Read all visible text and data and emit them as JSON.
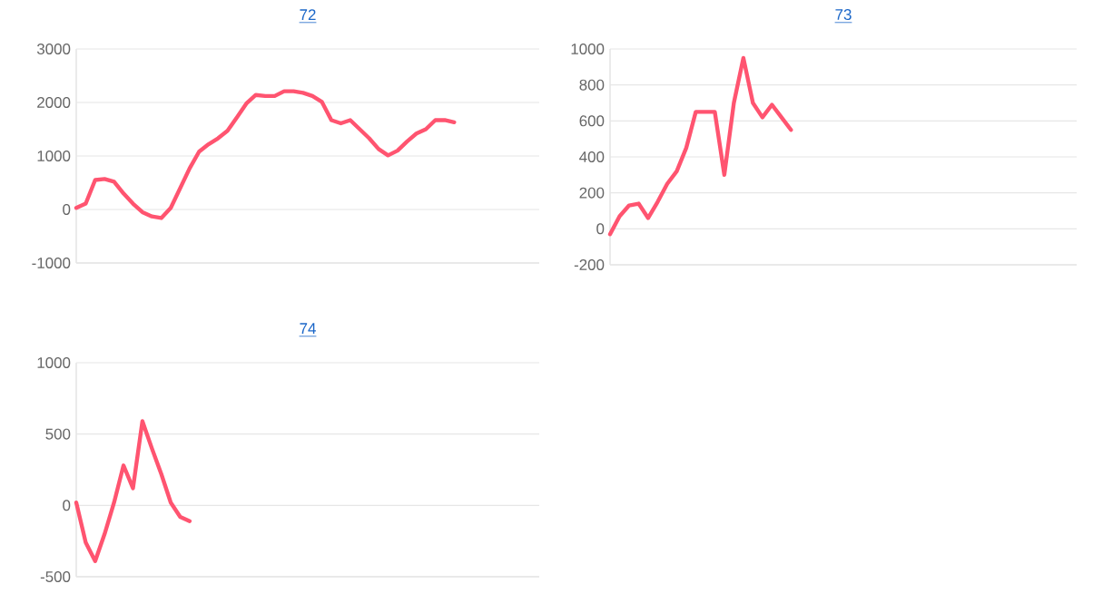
{
  "chart_data": [
    {
      "type": "line",
      "title": "72",
      "grid": "y",
      "tick_labels": "y",
      "marker": "none",
      "ylim": [
        -1000,
        3000
      ],
      "yticks": [
        -1000,
        0,
        1000,
        2000,
        3000
      ],
      "categories": [
        null,
        null,
        null,
        null,
        null,
        null,
        null,
        null,
        null,
        null,
        null,
        null,
        null,
        null,
        null,
        null,
        null,
        null,
        null,
        null,
        null,
        null,
        null,
        null,
        null,
        null,
        null,
        null,
        null,
        null,
        null,
        null,
        null,
        null,
        null,
        null,
        null,
        null,
        null,
        null,
        null,
        null,
        null,
        null,
        null,
        null,
        null,
        null,
        null,
        null
      ],
      "series": [
        {
          "color": "#ff5470",
          "values": [
            30,
            110,
            550,
            570,
            520,
            300,
            110,
            -50,
            -130,
            -160,
            30,
            400,
            770,
            1080,
            1220,
            1330,
            1470,
            1720,
            1980,
            2140,
            2120,
            2120,
            2210,
            2210,
            2180,
            2120,
            2010,
            1670,
            1610,
            1670,
            1500,
            1330,
            1130,
            1010,
            1100,
            1270,
            1420,
            1500,
            1670,
            1670,
            1630,
            null,
            null,
            null,
            null,
            null,
            null,
            null,
            null,
            null
          ]
        }
      ]
    },
    {
      "type": "line",
      "title": "73",
      "grid": "y",
      "tick_labels": "y",
      "marker": "none",
      "ylim": [
        -200,
        1000
      ],
      "yticks": [
        -200,
        0,
        200,
        400,
        600,
        800,
        1000
      ],
      "categories": [
        null,
        null,
        null,
        null,
        null,
        null,
        null,
        null,
        null,
        null,
        null,
        null,
        null,
        null,
        null,
        null,
        null,
        null,
        null,
        null,
        null,
        null,
        null,
        null,
        null,
        null,
        null,
        null,
        null,
        null,
        null,
        null,
        null,
        null,
        null,
        null,
        null,
        null,
        null,
        null,
        null,
        null,
        null,
        null,
        null,
        null,
        null,
        null,
        null,
        null
      ],
      "series": [
        {
          "color": "#ff5470",
          "values": [
            -30,
            70,
            130,
            140,
            60,
            150,
            250,
            320,
            450,
            650,
            650,
            650,
            300,
            700,
            950,
            700,
            620,
            690,
            620,
            550,
            null,
            null,
            null,
            null,
            null,
            null,
            null,
            null,
            null,
            null,
            null,
            null,
            null,
            null,
            null,
            null,
            null,
            null,
            null,
            null,
            null,
            null,
            null,
            null,
            null,
            null,
            null,
            null,
            null,
            null
          ]
        }
      ]
    },
    {
      "type": "line",
      "title": "74",
      "grid": "y",
      "tick_labels": "y",
      "marker": "none",
      "ylim": [
        -500,
        1000
      ],
      "yticks": [
        -500,
        0,
        500,
        1000
      ],
      "categories": [
        null,
        null,
        null,
        null,
        null,
        null,
        null,
        null,
        null,
        null,
        null,
        null,
        null,
        null,
        null,
        null,
        null,
        null,
        null,
        null,
        null,
        null,
        null,
        null,
        null,
        null,
        null,
        null,
        null,
        null,
        null,
        null,
        null,
        null,
        null,
        null,
        null,
        null,
        null,
        null,
        null,
        null,
        null,
        null,
        null,
        null,
        null,
        null,
        null,
        null
      ],
      "series": [
        {
          "color": "#ff5470",
          "values": [
            20,
            -260,
            -390,
            -200,
            20,
            280,
            120,
            590,
            400,
            220,
            20,
            -80,
            -110,
            null,
            null,
            null,
            null,
            null,
            null,
            null,
            null,
            null,
            null,
            null,
            null,
            null,
            null,
            null,
            null,
            null,
            null,
            null,
            null,
            null,
            null,
            null,
            null,
            null,
            null,
            null,
            null,
            null,
            null,
            null,
            null,
            null,
            null,
            null,
            null,
            null
          ]
        }
      ]
    }
  ]
}
